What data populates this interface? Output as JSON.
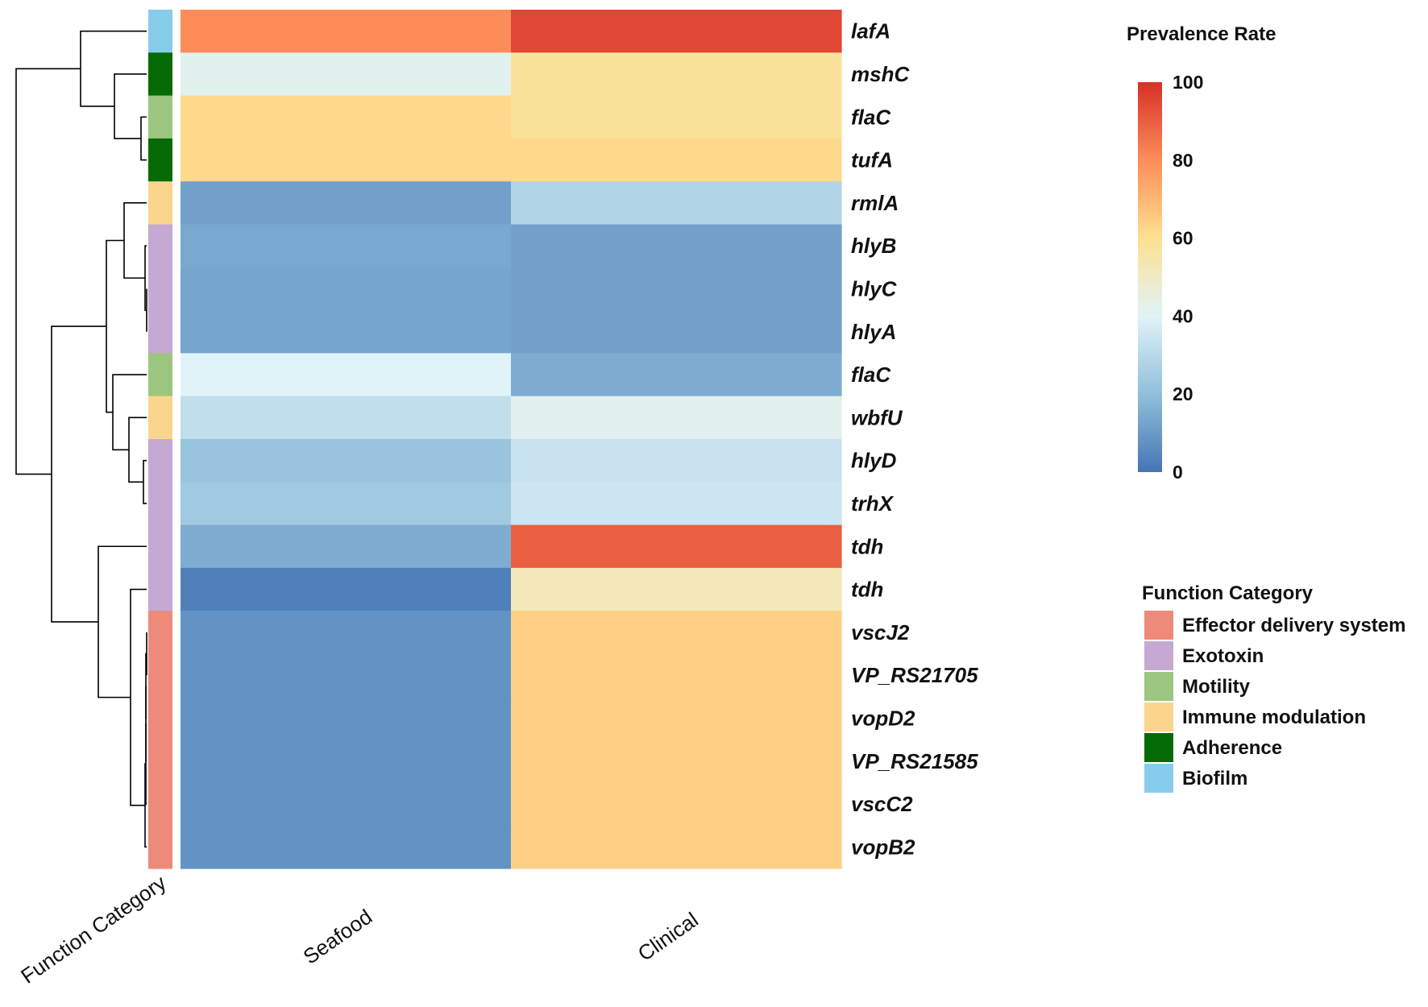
{
  "chart_data": {
    "type": "heatmap",
    "title": "",
    "columns": [
      "Seafood",
      "Clinical"
    ],
    "annotation_column_label": "Function Category",
    "rows": [
      {
        "gene": "lafA",
        "category": "Biofilm",
        "values": [
          80,
          95
        ]
      },
      {
        "gene": "mshC",
        "category": "Adherence",
        "values": [
          42,
          58
        ]
      },
      {
        "gene": "flaC",
        "category": "Motility",
        "values": [
          62,
          58
        ]
      },
      {
        "gene": "tufA",
        "category": "Adherence",
        "values": [
          62,
          62
        ]
      },
      {
        "gene": "rmlA",
        "category": "Immune modulation",
        "values": [
          12,
          28
        ]
      },
      {
        "gene": "hlyB",
        "category": "Exotoxin",
        "values": [
          14,
          12
        ]
      },
      {
        "gene": "hlyC",
        "category": "Exotoxin",
        "values": [
          13,
          12
        ]
      },
      {
        "gene": "hlyA",
        "category": "Exotoxin",
        "values": [
          13,
          12
        ]
      },
      {
        "gene": "flaC",
        "category": "Motility",
        "values": [
          40,
          15
        ]
      },
      {
        "gene": "wbfU",
        "category": "Immune modulation",
        "values": [
          32,
          42
        ]
      },
      {
        "gene": "hlyD",
        "category": "Exotoxin",
        "values": [
          22,
          34
        ]
      },
      {
        "gene": "trhX",
        "category": "Exotoxin",
        "values": [
          24,
          35
        ]
      },
      {
        "gene": "tdh",
        "category": "Exotoxin",
        "values": [
          15,
          90
        ]
      },
      {
        "gene": "tdh",
        "category": "Exotoxin",
        "values": [
          3,
          52
        ]
      },
      {
        "gene": "vscJ2",
        "category": "Effector delivery system",
        "values": [
          8,
          64
        ]
      },
      {
        "gene": "VP_RS21705",
        "category": "Effector delivery system",
        "values": [
          8,
          64
        ]
      },
      {
        "gene": "vopD2",
        "category": "Effector delivery system",
        "values": [
          8,
          64
        ]
      },
      {
        "gene": "VP_RS21585",
        "category": "Effector delivery system",
        "values": [
          8,
          64
        ]
      },
      {
        "gene": "vscC2",
        "category": "Effector delivery system",
        "values": [
          8,
          64
        ]
      },
      {
        "gene": "vopB2",
        "category": "Effector delivery system",
        "values": [
          8,
          64
        ]
      }
    ],
    "color_scale": {
      "title": "Prevalence Rate",
      "min": 0,
      "max": 100,
      "ticks": [
        0,
        20,
        40,
        60,
        80,
        100
      ],
      "stops": [
        "#4575b4",
        "#91bfdb",
        "#e0f3f8",
        "#fee090",
        "#fc8d59",
        "#d73027"
      ]
    },
    "category_legend": {
      "title": "Function Category",
      "items": [
        {
          "label": "Effector delivery system",
          "color": "#ee8a79"
        },
        {
          "label": "Exotoxin",
          "color": "#c6a9d3"
        },
        {
          "label": "Motility",
          "color": "#9cc67f"
        },
        {
          "label": "Immune modulation",
          "color": "#fbd58d"
        },
        {
          "label": "Adherence",
          "color": "#066a06"
        },
        {
          "label": "Biofilm",
          "color": "#86cdec"
        }
      ]
    },
    "dendrogram": {
      "description": "hierarchical clustering of rows",
      "merges_note": "tree shown at left of heatmap"
    }
  }
}
